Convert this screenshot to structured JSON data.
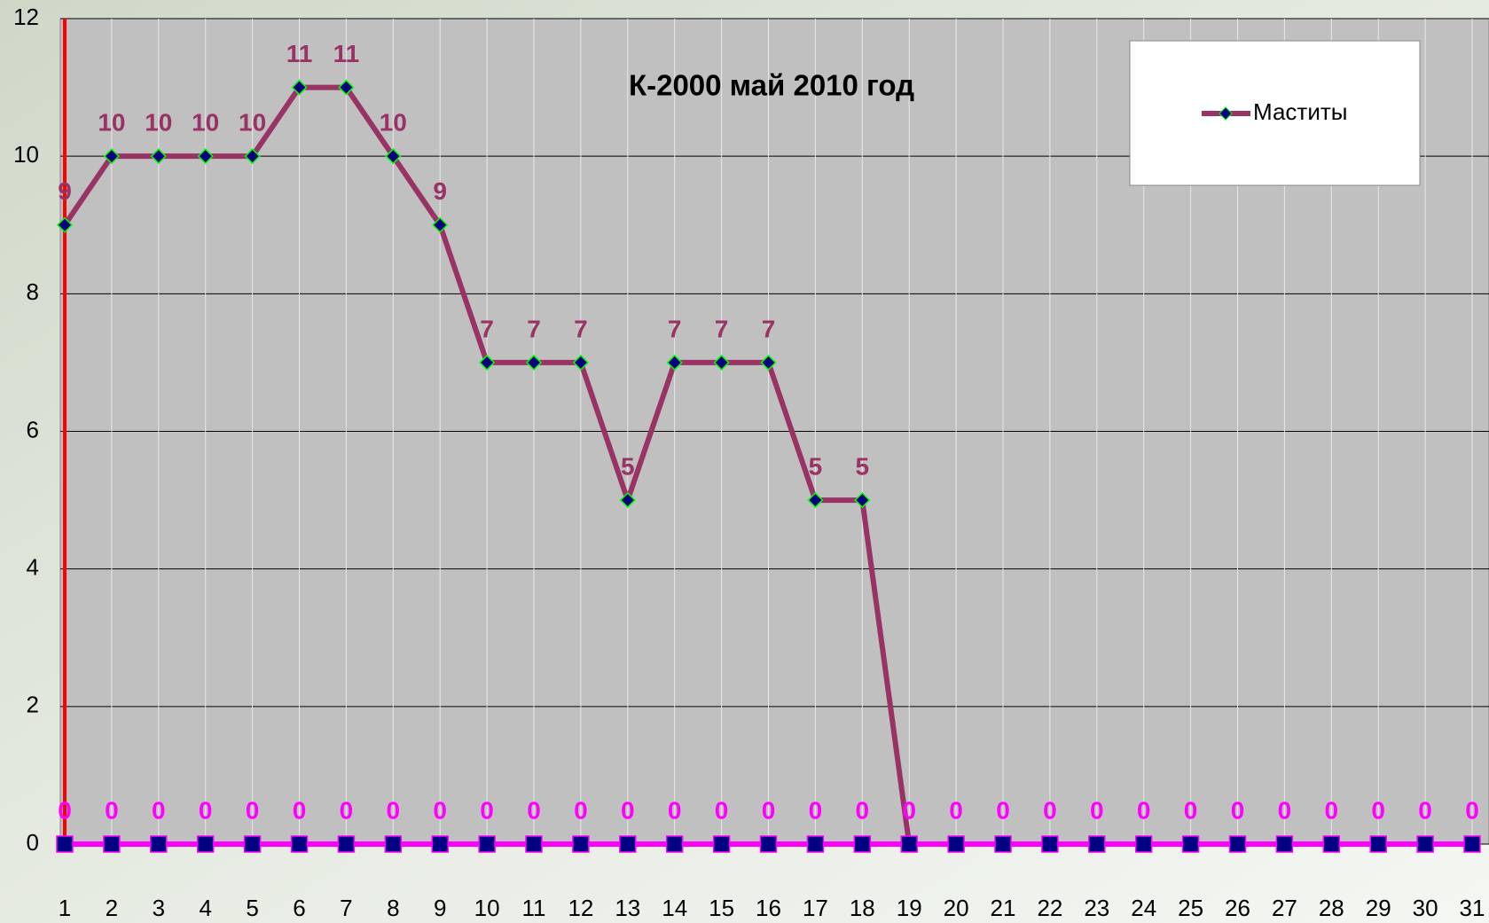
{
  "chart_data": {
    "type": "line",
    "title": "К-2000 май 2010 год",
    "categories": [
      "1",
      "2",
      "3",
      "4",
      "5",
      "6",
      "7",
      "8",
      "9",
      "10",
      "11",
      "12",
      "13",
      "14",
      "15",
      "16",
      "17",
      "18",
      "19",
      "20",
      "21",
      "22",
      "23",
      "24",
      "25",
      "26",
      "27",
      "28",
      "29",
      "30",
      "31"
    ],
    "series": [
      {
        "name": "Маститы",
        "color": "#993366",
        "marker": "diamond",
        "values": [
          9,
          10,
          10,
          10,
          10,
          11,
          11,
          10,
          9,
          7,
          7,
          7,
          5,
          7,
          7,
          7,
          5,
          5,
          0,
          null,
          null,
          null,
          null,
          null,
          null,
          null,
          null,
          null,
          null,
          null,
          null
        ]
      },
      {
        "color": "#ff00ff",
        "marker": "square",
        "values": [
          0,
          0,
          0,
          0,
          0,
          0,
          0,
          0,
          0,
          0,
          0,
          0,
          0,
          0,
          0,
          0,
          0,
          0,
          0,
          0,
          0,
          0,
          0,
          0,
          0,
          0,
          0,
          0,
          0,
          0,
          0
        ]
      }
    ],
    "ylim": [
      0,
      12
    ],
    "yticks": [
      0,
      2,
      4,
      6,
      8,
      10,
      12
    ],
    "grid": true,
    "legend": "upper right"
  }
}
